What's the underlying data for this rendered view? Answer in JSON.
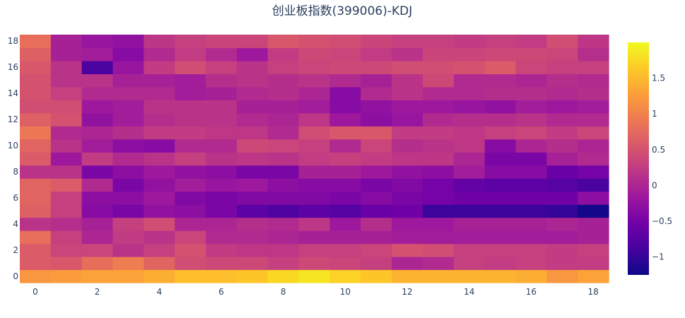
{
  "chart_data": {
    "type": "heatmap",
    "title": "创业板指数(399006)-KDJ",
    "xlabel": "",
    "ylabel": "",
    "x": [
      0,
      1,
      2,
      3,
      4,
      5,
      6,
      7,
      8,
      9,
      10,
      11,
      12,
      13,
      14,
      15,
      16,
      17,
      18
    ],
    "y": [
      0,
      1,
      2,
      3,
      4,
      5,
      6,
      7,
      8,
      9,
      10,
      11,
      12,
      13,
      14,
      15,
      16,
      17,
      18
    ],
    "xticks": [
      0,
      2,
      4,
      6,
      8,
      10,
      12,
      14,
      16,
      18
    ],
    "yticks": [
      0,
      2,
      4,
      6,
      8,
      10,
      12,
      14,
      16,
      18
    ],
    "colorbar": {
      "min": -1.25,
      "max": 2.0,
      "ticks": [
        -1,
        -0.5,
        0,
        0.5,
        1,
        1.5
      ],
      "tick_labels": [
        "−1",
        "−0.5",
        "0",
        "0.5",
        "1",
        "1.5"
      ]
    },
    "colorscale": [
      "#0d0887",
      "#46039f",
      "#7201a8",
      "#9c179e",
      "#bd3786",
      "#d8576b",
      "#ed7953",
      "#fb9f3a",
      "#fdca26",
      "#f0f921"
    ],
    "z": [
      [
        1.2,
        1.25,
        1.3,
        1.3,
        1.4,
        1.55,
        1.55,
        1.6,
        1.75,
        1.85,
        1.7,
        1.6,
        1.45,
        1.45,
        1.45,
        1.45,
        1.4,
        1.2,
        1.3
      ],
      [
        0.6,
        0.55,
        0.8,
        0.95,
        0.7,
        0.45,
        0.4,
        0.4,
        0.3,
        0.4,
        0.35,
        0.3,
        0.0,
        0.05,
        0.3,
        0.25,
        0.3,
        0.25,
        0.25
      ],
      [
        0.6,
        0.35,
        0.35,
        0.15,
        0.3,
        0.5,
        0.25,
        0.2,
        0.2,
        0.3,
        0.3,
        0.35,
        0.5,
        0.45,
        0.3,
        0.3,
        0.3,
        0.25,
        0.3
      ],
      [
        0.8,
        0.3,
        0.0,
        0.25,
        0.15,
        0.35,
        0.05,
        0.05,
        0.0,
        -0.05,
        -0.05,
        -0.05,
        -0.1,
        -0.1,
        -0.1,
        -0.1,
        -0.1,
        -0.1,
        -0.05
      ],
      [
        0.15,
        0.1,
        -0.05,
        0.3,
        0.45,
        0.0,
        0.0,
        0.1,
        0.05,
        0.2,
        -0.15,
        0.1,
        -0.15,
        -0.15,
        -0.05,
        -0.05,
        -0.05,
        0.0,
        -0.05
      ],
      [
        0.65,
        0.3,
        -0.35,
        -0.45,
        -0.25,
        -0.3,
        -0.45,
        -0.7,
        -0.8,
        -0.7,
        -0.75,
        -0.6,
        -0.55,
        -0.95,
        -0.95,
        -0.95,
        -0.95,
        -1.0,
        -1.2
      ],
      [
        0.7,
        0.3,
        -0.3,
        -0.3,
        -0.15,
        -0.4,
        -0.45,
        -0.4,
        -0.4,
        -0.4,
        -0.45,
        -0.35,
        -0.45,
        -0.5,
        -0.55,
        -0.55,
        -0.55,
        -0.55,
        -0.3
      ],
      [
        0.7,
        0.6,
        0.05,
        -0.45,
        -0.25,
        -0.1,
        -0.2,
        -0.15,
        -0.3,
        -0.35,
        -0.35,
        -0.45,
        -0.4,
        -0.5,
        -0.65,
        -0.7,
        -0.7,
        -0.75,
        -0.85
      ],
      [
        0.15,
        0.15,
        -0.45,
        -0.3,
        -0.15,
        -0.25,
        -0.3,
        -0.45,
        -0.45,
        -0.05,
        -0.05,
        -0.15,
        -0.25,
        -0.3,
        -0.1,
        -0.35,
        -0.35,
        -0.6,
        -0.5
      ],
      [
        0.6,
        -0.15,
        0.25,
        0.05,
        0.15,
        0.3,
        0.15,
        0.2,
        0.15,
        0.25,
        0.3,
        0.25,
        0.2,
        0.2,
        0.0,
        -0.45,
        -0.45,
        -0.05,
        0.05
      ],
      [
        0.7,
        0.15,
        -0.1,
        -0.3,
        -0.35,
        0.05,
        0.05,
        0.4,
        0.35,
        0.3,
        0.05,
        0.35,
        0.1,
        0.15,
        0.2,
        -0.35,
        0.0,
        0.1,
        0.0
      ],
      [
        0.9,
        0.05,
        0.0,
        0.1,
        0.25,
        0.25,
        0.2,
        0.2,
        0.05,
        0.45,
        0.55,
        0.55,
        0.25,
        0.25,
        0.2,
        0.3,
        0.35,
        0.25,
        0.35
      ],
      [
        0.65,
        0.5,
        -0.25,
        -0.1,
        0.1,
        0.15,
        0.15,
        0.05,
        0.0,
        0.2,
        -0.15,
        -0.3,
        -0.2,
        0.05,
        0.1,
        0.1,
        0.15,
        0.05,
        0.05
      ],
      [
        0.45,
        0.45,
        -0.15,
        -0.1,
        0.15,
        0.15,
        0.15,
        -0.05,
        -0.05,
        -0.1,
        -0.35,
        -0.25,
        -0.15,
        -0.15,
        -0.2,
        -0.25,
        -0.1,
        -0.15,
        -0.1
      ],
      [
        0.5,
        0.3,
        0.05,
        0.05,
        0.05,
        -0.1,
        -0.05,
        0.05,
        0.1,
        0.0,
        -0.35,
        0.05,
        0.15,
        0.05,
        0.05,
        0.1,
        0.1,
        0.05,
        0.1
      ],
      [
        0.5,
        0.15,
        0.15,
        -0.05,
        -0.05,
        -0.1,
        0.1,
        0.15,
        0.1,
        0.15,
        0.05,
        -0.05,
        0.15,
        0.4,
        0.05,
        0.05,
        0.0,
        0.1,
        0.05
      ],
      [
        0.55,
        0.15,
        -0.85,
        -0.2,
        0.25,
        0.45,
        0.3,
        0.15,
        0.3,
        0.35,
        0.4,
        0.4,
        0.45,
        0.45,
        0.5,
        0.6,
        0.35,
        0.3,
        0.3
      ],
      [
        0.65,
        -0.05,
        -0.1,
        -0.35,
        0.05,
        0.25,
        0.05,
        -0.15,
        0.25,
        0.4,
        0.35,
        0.25,
        0.15,
        0.35,
        0.35,
        0.4,
        0.4,
        0.35,
        0.1
      ],
      [
        0.8,
        -0.05,
        -0.2,
        -0.25,
        0.2,
        0.3,
        0.35,
        0.35,
        0.55,
        0.5,
        0.45,
        0.35,
        0.3,
        0.3,
        0.25,
        0.3,
        0.25,
        0.45,
        0.2
      ]
    ]
  }
}
